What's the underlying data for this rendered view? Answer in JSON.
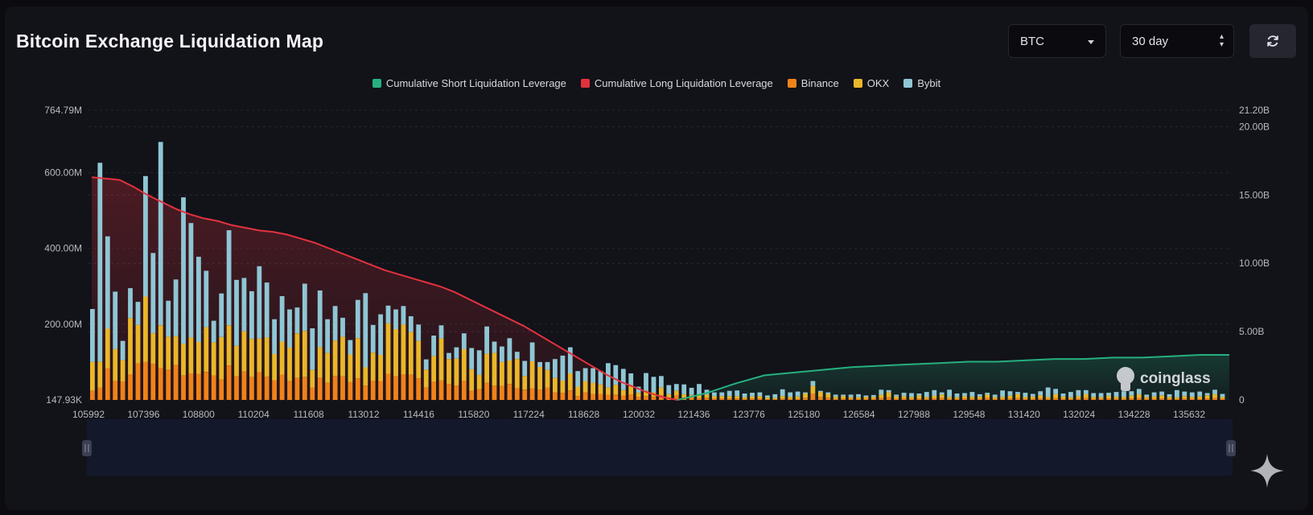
{
  "header": {
    "title": "Bitcoin Exchange Liquidation Map"
  },
  "controls": {
    "coin_select": "BTC",
    "range_select": "30 day",
    "refresh_icon": "refresh-icon"
  },
  "colors": {
    "short": "#26b07e",
    "long": "#e2323e",
    "binance": "#f0821a",
    "okx": "#e9b72a",
    "bybit": "#8fc6d4"
  },
  "watermark": "coinglass",
  "chart_data": {
    "type": "bar",
    "legend_position": "top-center",
    "series": [
      {
        "name": "Cumulative Short Liquidation Leverage",
        "kind": "area-line",
        "axis": "right"
      },
      {
        "name": "Cumulative Long Liquidation Leverage",
        "kind": "area-line",
        "axis": "right"
      },
      {
        "name": "Binance",
        "kind": "stacked-bar",
        "axis": "left"
      },
      {
        "name": "OKX",
        "kind": "stacked-bar",
        "axis": "left"
      },
      {
        "name": "Bybit",
        "kind": "stacked-bar",
        "axis": "left"
      }
    ],
    "x_tick_labels": [
      "105992",
      "107396",
      "108800",
      "110204",
      "111608",
      "113012",
      "114416",
      "115820",
      "117224",
      "118628",
      "120032",
      "121436",
      "123776",
      "125180",
      "126584",
      "127988",
      "129548",
      "131420",
      "132024",
      "134228",
      "135632"
    ],
    "y_left_tick_labels": [
      "764.79M",
      "600.00M",
      "400.00M",
      "200.00M",
      "147.93K"
    ],
    "y_left_tick_values": [
      764.79,
      600,
      400,
      200,
      0
    ],
    "y_left_range": [
      0,
      764.79
    ],
    "y_right_tick_labels": [
      "21.20B",
      "20.00B",
      "15.00B",
      "10.00B",
      "5.00B",
      "0"
    ],
    "y_right_tick_values": [
      21.2,
      20,
      15,
      10,
      5,
      0
    ],
    "y_right_range": [
      0,
      21.2
    ],
    "grid": "horizontal dashed",
    "price_range": [
      105992,
      136800
    ],
    "bars": {
      "binance": [
        24,
        33,
        83,
        51,
        49,
        67,
        96,
        101,
        95,
        85,
        80,
        92,
        64,
        70,
        69,
        74,
        65,
        54,
        91,
        62,
        75,
        60,
        73,
        61,
        52,
        67,
        50,
        58,
        60,
        32,
        58,
        45,
        63,
        62,
        47,
        57,
        38,
        51,
        50,
        69,
        62,
        67,
        67,
        57,
        33,
        48,
        51,
        42,
        38,
        50,
        24,
        28,
        45,
        38,
        37,
        42,
        31,
        27,
        30,
        26,
        32,
        20,
        19,
        25,
        10,
        20,
        16,
        16,
        13,
        14,
        11,
        15,
        8,
        10,
        8,
        12,
        6,
        11,
        6,
        5,
        5,
        6,
        4,
        4,
        4,
        4,
        3,
        4,
        4,
        2,
        2,
        4,
        3,
        3,
        6,
        17,
        8,
        6,
        3,
        4,
        3,
        3,
        3,
        3,
        5,
        7,
        3,
        4,
        3,
        4,
        3,
        4,
        5,
        3,
        3,
        4,
        3,
        3,
        5,
        3,
        3,
        4,
        5,
        3,
        3,
        4,
        3,
        5,
        3,
        3,
        4,
        5,
        3,
        3,
        4,
        3,
        3,
        4,
        5,
        3,
        3,
        4,
        3,
        3,
        4,
        3,
        3,
        4,
        5,
        3
      ],
      "okx": [
        76,
        68,
        105,
        83,
        56,
        149,
        102,
        172,
        81,
        112,
        87,
        76,
        84,
        95,
        84,
        118,
        87,
        112,
        106,
        81,
        106,
        101,
        89,
        104,
        69,
        87,
        88,
        118,
        122,
        47,
        81,
        79,
        94,
        105,
        73,
        106,
        48,
        74,
        69,
        133,
        125,
        132,
        112,
        99,
        47,
        68,
        111,
        66,
        71,
        84,
        57,
        38,
        77,
        86,
        63,
        62,
        77,
        36,
        72,
        61,
        47,
        38,
        32,
        45,
        25,
        30,
        29,
        25,
        20,
        26,
        15,
        22,
        11,
        14,
        12,
        21,
        9,
        13,
        9,
        8,
        7,
        8,
        6,
        6,
        6,
        6,
        4,
        5,
        6,
        4,
        3,
        6,
        5,
        6,
        11,
        20,
        13,
        10,
        5,
        6,
        4,
        4,
        5,
        5,
        9,
        13,
        6,
        6,
        4,
        8,
        5,
        7,
        9,
        5,
        4,
        6,
        5,
        6,
        9,
        4,
        5,
        7,
        10,
        5,
        6,
        8,
        5,
        10,
        6,
        4,
        6,
        10,
        5,
        4,
        7,
        5,
        5,
        7,
        10,
        5,
        6,
        8,
        5,
        4,
        6,
        5,
        6,
        8,
        10,
        5
      ],
      "bybit": [
        140,
        525,
        244,
        152,
        51,
        79,
        61,
        318,
        212,
        484,
        95,
        150,
        387,
        302,
        225,
        149,
        57,
        115,
        251,
        174,
        141,
        126,
        191,
        145,
        92,
        120,
        101,
        68,
        125,
        110,
        150,
        89,
        91,
        50,
        38,
        101,
        196,
        73,
        107,
        47,
        52,
        49,
        42,
        43,
        27,
        54,
        35,
        16,
        30,
        42,
        56,
        65,
        72,
        30,
        41,
        59,
        19,
        40,
        50,
        13,
        21,
        50,
        66,
        69,
        41,
        34,
        39,
        35,
        64,
        52,
        56,
        33,
        16,
        47,
        41,
        30,
        24,
        18,
        26,
        19,
        30,
        13,
        10,
        10,
        14,
        15,
        10,
        10,
        10,
        6,
        10,
        18,
        12,
        13,
        3,
        13,
        3,
        4,
        6,
        4,
        7,
        8,
        4,
        5,
        13,
        6,
        5,
        9,
        11,
        5,
        13,
        15,
        6,
        19,
        10,
        8,
        13,
        6,
        5,
        7,
        17,
        12,
        6,
        11,
        7,
        11,
        25,
        14,
        8,
        14,
        16,
        11,
        10,
        11,
        8,
        13,
        15,
        12,
        14,
        6,
        11,
        10,
        7,
        19,
        12,
        12,
        13,
        6,
        12,
        8
      ]
    },
    "cumulative_long_B": [
      16.3,
      16.2,
      16.1,
      15.6,
      15.0,
      14.5,
      14.0,
      13.6,
      13.3,
      13.1,
      12.8,
      12.6,
      12.4,
      12.3,
      12.1,
      11.8,
      11.5,
      11.1,
      10.7,
      10.3,
      9.9,
      9.5,
      9.2,
      8.9,
      8.6,
      8.3,
      7.9,
      7.4,
      6.9,
      6.4,
      5.9,
      5.4,
      4.8,
      4.2,
      3.6,
      3.0,
      2.4,
      1.8,
      1.3,
      0.9,
      0.5,
      0.2,
      0.0
    ],
    "cumulative_short_B": [
      0.0,
      0.5,
      1.2,
      1.8,
      2.0,
      2.2,
      2.4,
      2.5,
      2.6,
      2.7,
      2.8,
      2.8,
      2.9,
      3.0,
      3.0,
      3.1,
      3.1,
      3.2,
      3.3,
      3.3
    ]
  }
}
